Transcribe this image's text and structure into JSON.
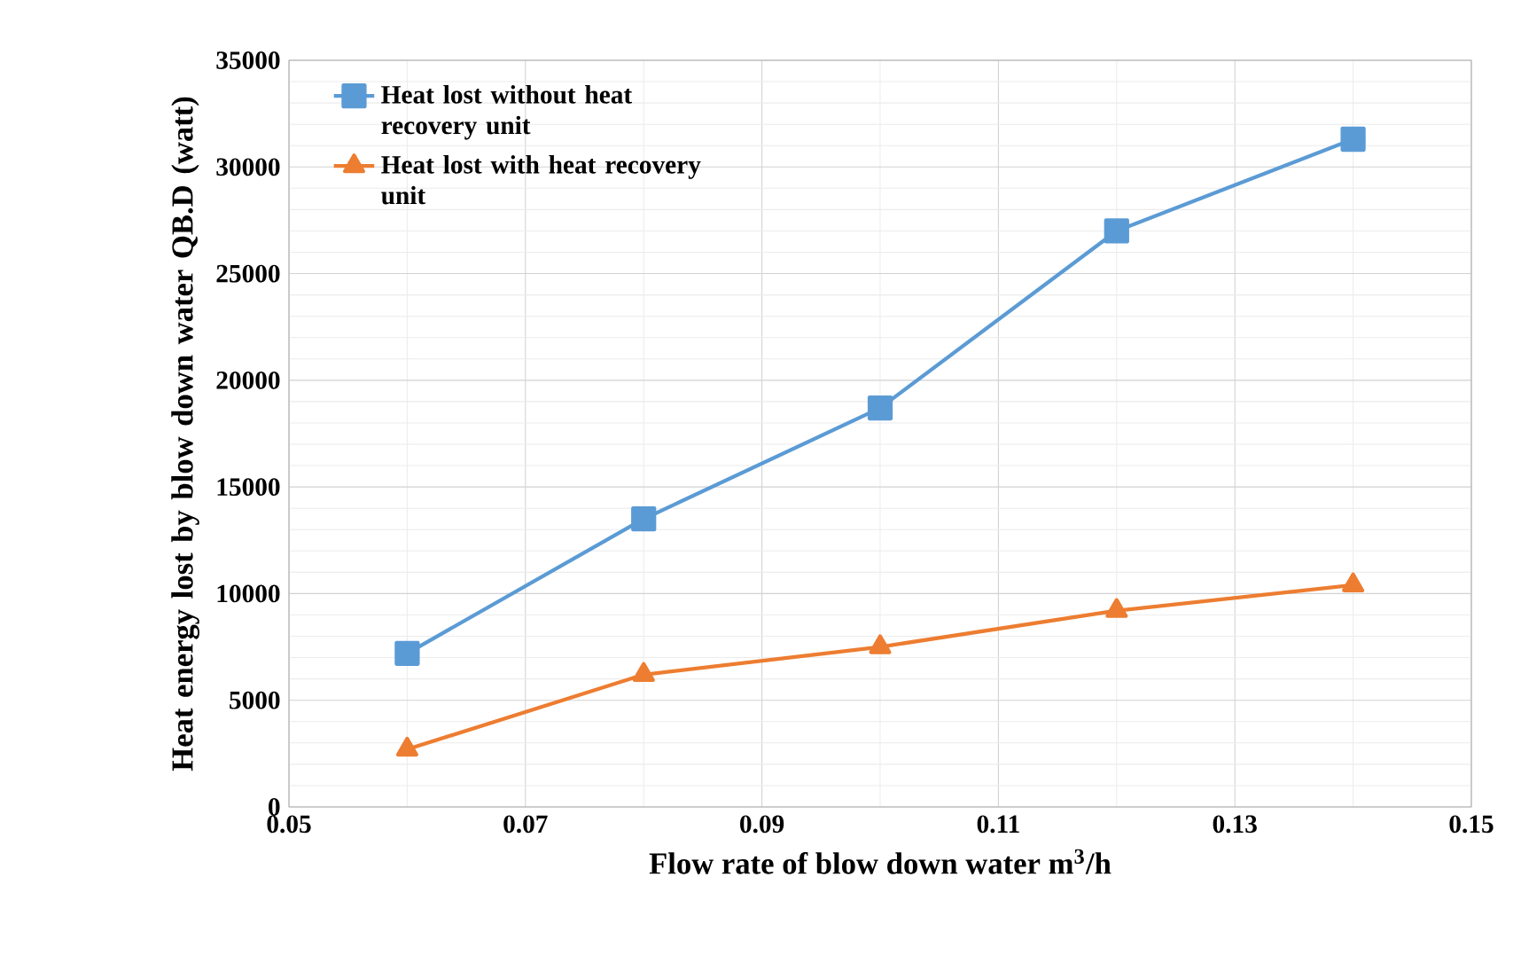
{
  "chart_data": {
    "type": "line",
    "xlabel": "Flow rate of blow down water m$^{3}$/h",
    "ylabel": "Heat energy lost by blow down water QB.D (watt)",
    "x": [
      0.06,
      0.08,
      0.1,
      0.12,
      0.14
    ],
    "series": [
      {
        "name": "Heat lost without heat recovery unit",
        "color": "#5b9bd5",
        "marker": "square",
        "values": [
          7200,
          13500,
          18700,
          27000,
          31300
        ]
      },
      {
        "name": "Heat lost with heat recovery unit",
        "color": "#ed7d31",
        "marker": "triangle",
        "values": [
          2700,
          6200,
          7500,
          9200,
          10400
        ]
      }
    ],
    "xlim": [
      0.05,
      0.15
    ],
    "xticks": [
      0.05,
      0.07,
      0.09,
      0.11,
      0.13,
      0.15
    ],
    "ylim": [
      0,
      35000
    ],
    "yticks": [
      0,
      5000,
      10000,
      15000,
      20000,
      25000,
      30000,
      35000
    ],
    "grid": true,
    "legend": "top left",
    "line_style": "solid"
  }
}
